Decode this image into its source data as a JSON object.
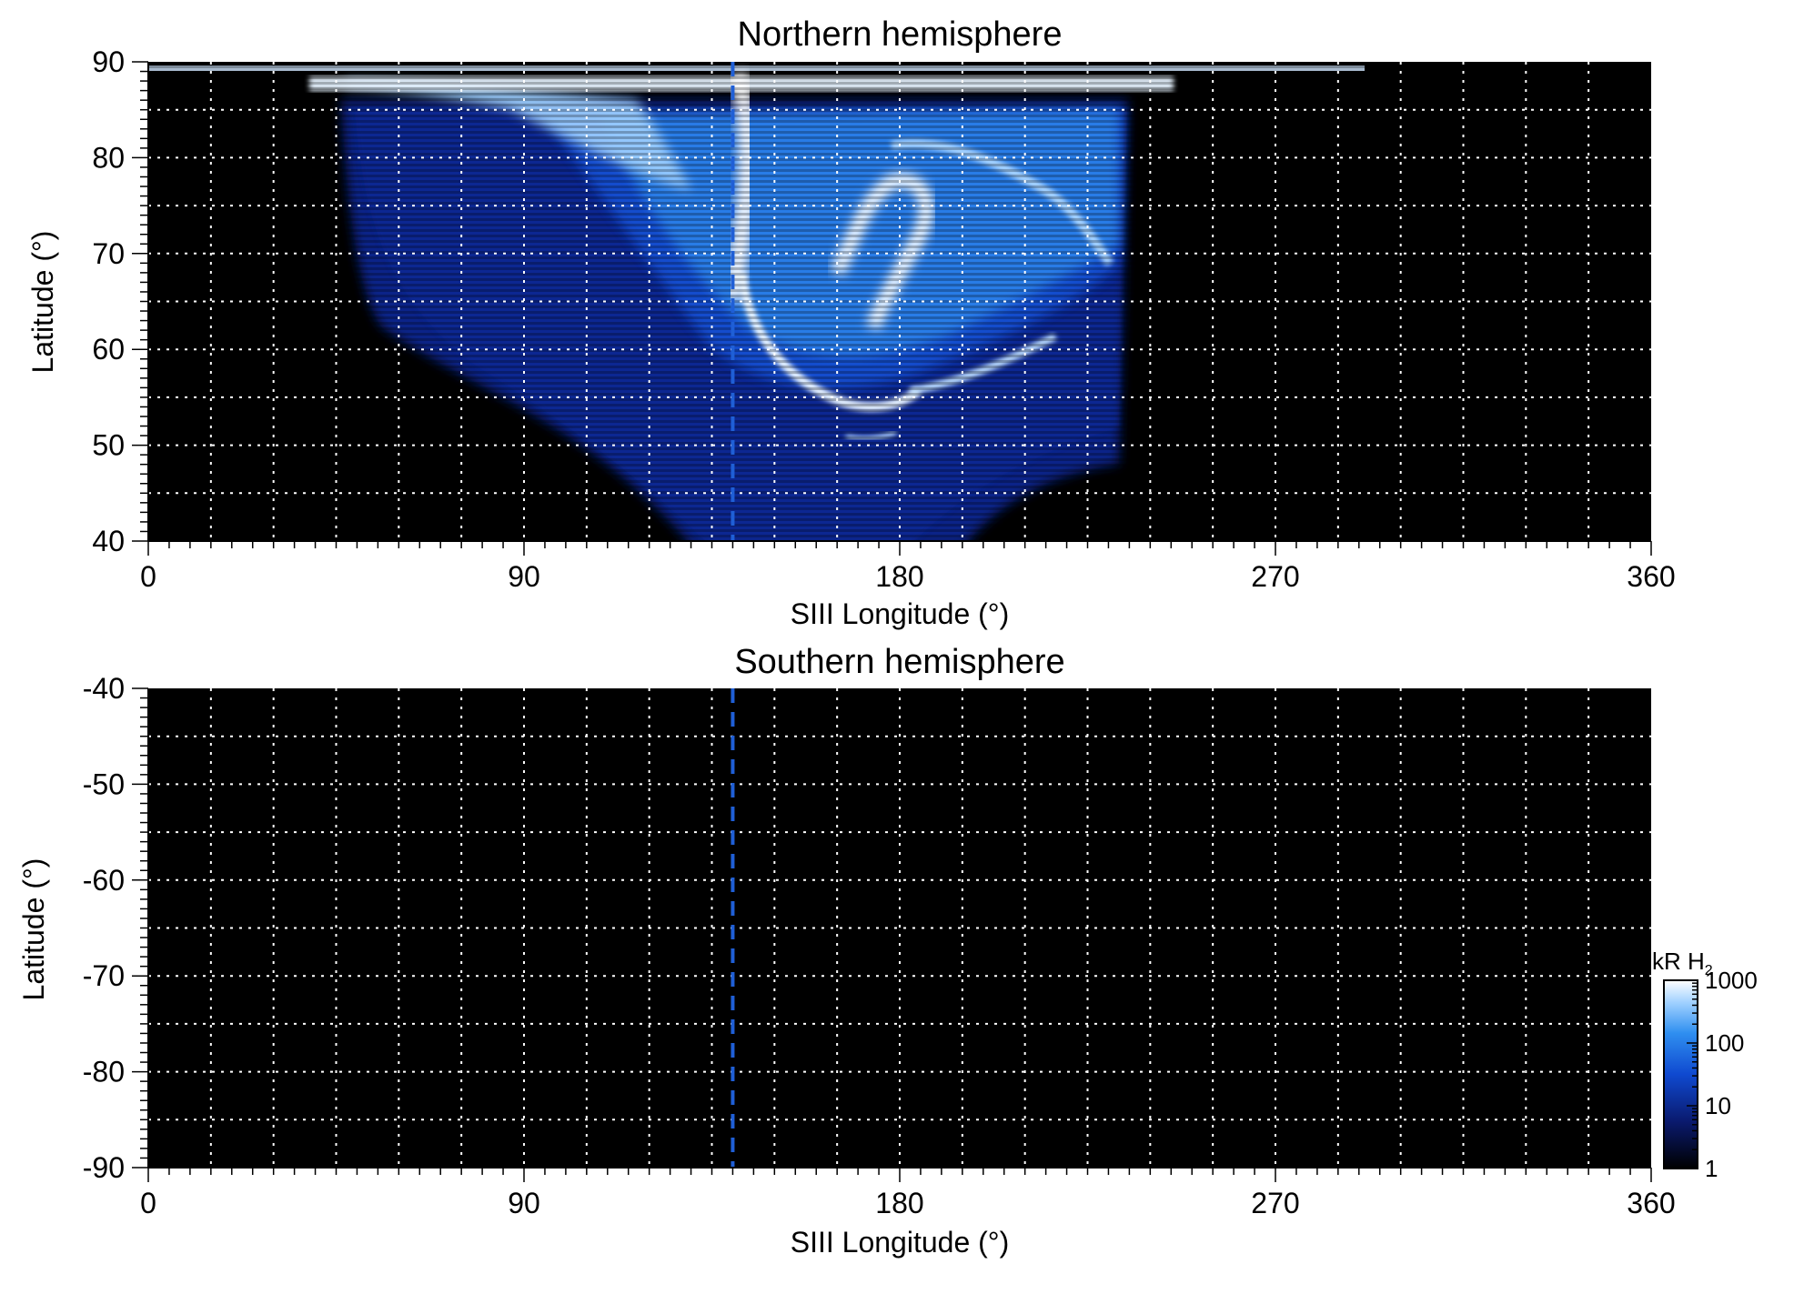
{
  "chart_data": [
    {
      "type": "heatmap",
      "title": "Northern hemisphere",
      "xlabel": "SIII Longitude (°)",
      "ylabel": "Latitude (°)",
      "xlim": [
        0,
        360
      ],
      "ylim": [
        40,
        90
      ],
      "x_ticks": [
        0,
        90,
        180,
        270,
        360
      ],
      "x_tick_labels": [
        "0",
        "90",
        "180",
        "270",
        "360"
      ],
      "y_ticks": [
        40,
        50,
        60,
        70,
        80,
        90
      ],
      "y_tick_labels": [
        "40",
        "50",
        "60",
        "70",
        "80",
        "90"
      ],
      "grid": true,
      "grid_spacing_x": 15,
      "grid_spacing_y": 5,
      "background_color": "#000000",
      "reference_line": {
        "x": 140,
        "style": "dashed",
        "color": "#1f5fd6"
      },
      "emission_region": {
        "lon_range": [
          45,
          235
        ],
        "lat_range": [
          40,
          89
        ],
        "features": [
          {
            "kind": "main-oval-arc",
            "lon": [
              140,
              230
            ],
            "lat": [
              55,
              75
            ]
          },
          {
            "kind": "polar-bright",
            "lon": [
              80,
              240
            ],
            "lat": [
              84,
              89
            ]
          }
        ]
      }
    },
    {
      "type": "heatmap",
      "title": "Southern hemisphere",
      "xlabel": "SIII Longitude (°)",
      "ylabel": "Latitude (°)",
      "xlim": [
        0,
        360
      ],
      "ylim": [
        -90,
        -40
      ],
      "x_ticks": [
        0,
        90,
        180,
        270,
        360
      ],
      "x_tick_labels": [
        "0",
        "90",
        "180",
        "270",
        "360"
      ],
      "y_ticks": [
        -40,
        -50,
        -60,
        -70,
        -80,
        -90
      ],
      "y_tick_labels": [
        "-40",
        "-50",
        "-60",
        "-70",
        "-80",
        "-90"
      ],
      "grid": true,
      "grid_spacing_x": 15,
      "grid_spacing_y": 5,
      "background_color": "#000000",
      "reference_line": {
        "x": 140,
        "style": "dashed",
        "color": "#1f5fd6"
      }
    }
  ],
  "colorbar": {
    "label": "kR H",
    "label_subscript": "2",
    "scale": "log",
    "range": [
      1,
      1000
    ],
    "ticks": [
      1,
      10,
      100,
      1000
    ],
    "tick_labels": [
      "1",
      "10",
      "100",
      "1000"
    ],
    "colors": [
      "#000000",
      "#0a1a6e",
      "#0f49d0",
      "#2f8ff0",
      "#9fd0ff",
      "#ffffff"
    ]
  }
}
